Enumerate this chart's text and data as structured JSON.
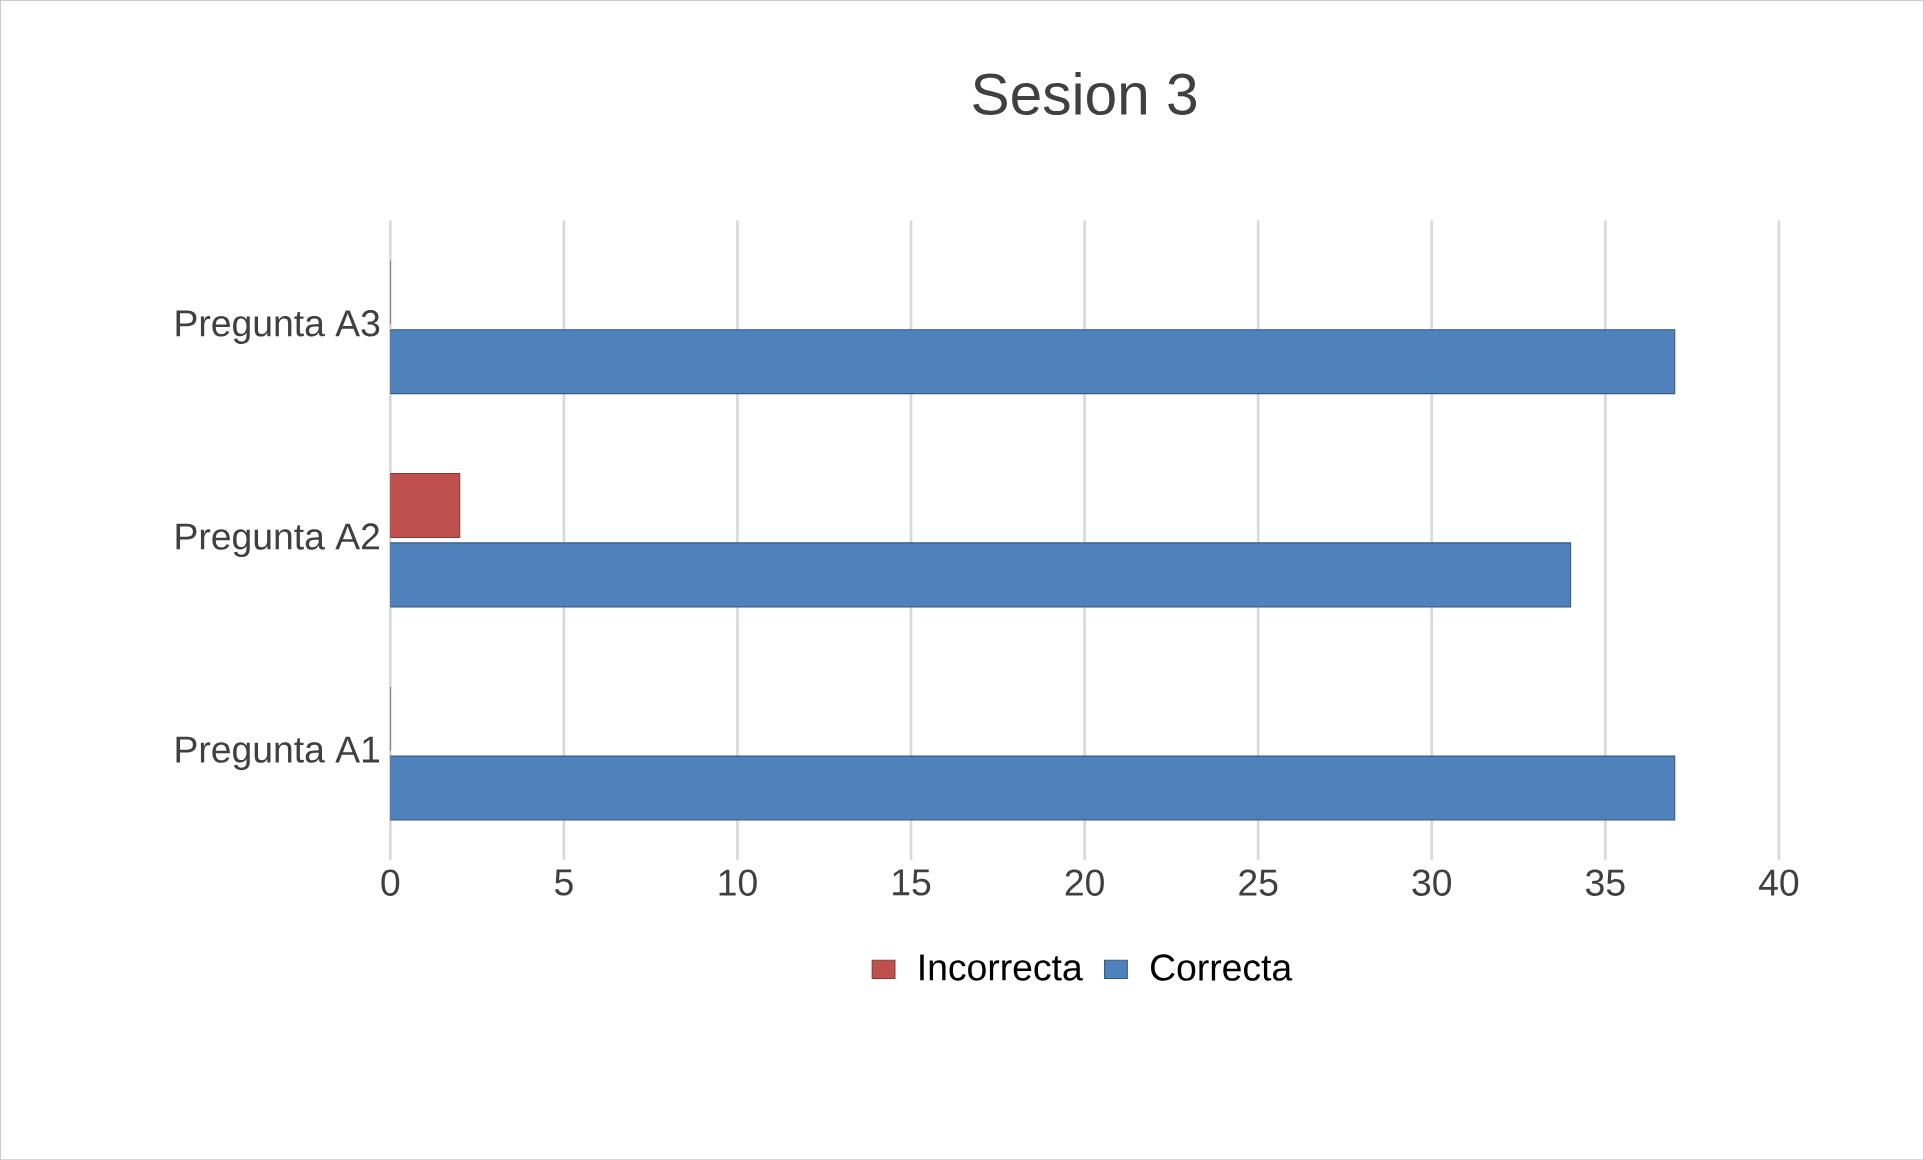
{
  "chart_data": {
    "type": "bar",
    "orientation": "horizontal",
    "title": "Sesion 3",
    "categories": [
      "Pregunta A3",
      "Pregunta A2",
      "Pregunta A1"
    ],
    "series": [
      {
        "name": "Incorrecta",
        "color": "#c0504d",
        "values": [
          0,
          2,
          0
        ]
      },
      {
        "name": "Correcta",
        "color": "#4f81bd",
        "values": [
          37,
          34,
          37
        ]
      }
    ],
    "xlim": [
      0,
      40
    ],
    "xticks": [
      0,
      5,
      10,
      15,
      20,
      25,
      30,
      35,
      40
    ],
    "grid": "x",
    "legend": "bottom"
  }
}
